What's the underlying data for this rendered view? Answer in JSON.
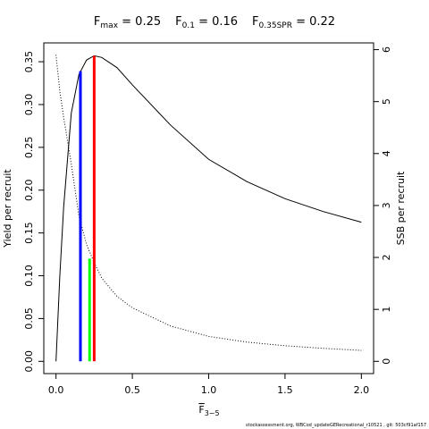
{
  "chart_data": {
    "type": "line",
    "title_parts": [
      {
        "main": "F",
        "sub": "max",
        "rest": " = 0.25"
      },
      {
        "main": "F",
        "sub": "0.1",
        "rest": " = 0.16"
      },
      {
        "main": "F",
        "sub": "0.35SPR",
        "rest": " = 0.22"
      }
    ],
    "x_label": {
      "main": "F",
      "sub": "3−5"
    },
    "y_label": "Yield per recruit",
    "y2_label": "SSB per recruit",
    "footer": "stockassessment.org, WBCod_updateGERecreational_r10521 , git: 503cf91af157",
    "x": [
      0,
      0.025,
      0.05,
      0.1,
      0.15,
      0.2,
      0.25,
      0.3,
      0.4,
      0.5,
      0.75,
      1.0,
      1.25,
      1.5,
      1.75,
      2.0
    ],
    "series": [
      {
        "name": "Yield per recruit",
        "color": "#000000",
        "dash": "none",
        "axis": "y",
        "values": [
          0,
          0.1,
          0.18,
          0.29,
          0.335,
          0.352,
          0.357,
          0.355,
          0.343,
          0.323,
          0.276,
          0.236,
          0.21,
          0.19,
          0.175,
          0.1625
        ]
      },
      {
        "name": "SSB per recruit",
        "color": "#000000",
        "dash": "1,2",
        "axis": "y2",
        "values": [
          5.9,
          5.2,
          4.7,
          3.8,
          2.8,
          2.25,
          1.9,
          1.6,
          1.25,
          1.03,
          0.68,
          0.48,
          0.37,
          0.3,
          0.25,
          0.21
        ]
      }
    ],
    "reference_lines": [
      {
        "x": 0.16,
        "value": 0.339,
        "color": "#0000ff"
      },
      {
        "x": 0.25,
        "value": 0.357,
        "color": "#ff0000"
      },
      {
        "x": 0.22,
        "value": 0.12,
        "color": "#00ff00"
      }
    ],
    "xlim": [
      -0.08,
      2.08
    ],
    "ylim": [
      -0.0143,
      0.372
    ],
    "y2lim": [
      -0.236,
      6.13
    ],
    "xticks": [
      {
        "value": 0,
        "label": "0.0"
      },
      {
        "value": 0.5,
        "label": "0.5"
      },
      {
        "value": 1,
        "label": "1.0"
      },
      {
        "value": 1.5,
        "label": "1.5"
      },
      {
        "value": 2,
        "label": "2.0"
      }
    ],
    "yticks": [
      {
        "value": 0,
        "label": "0.00"
      },
      {
        "value": 0.05,
        "label": "0.05"
      },
      {
        "value": 0.1,
        "label": "0.10"
      },
      {
        "value": 0.15,
        "label": "0.15"
      },
      {
        "value": 0.2,
        "label": "0.20"
      },
      {
        "value": 0.25,
        "label": "0.25"
      },
      {
        "value": 0.3,
        "label": "0.30"
      },
      {
        "value": 0.35,
        "label": "0.35"
      }
    ],
    "y2ticks": [
      0,
      1,
      2,
      3,
      4,
      5,
      6
    ]
  }
}
